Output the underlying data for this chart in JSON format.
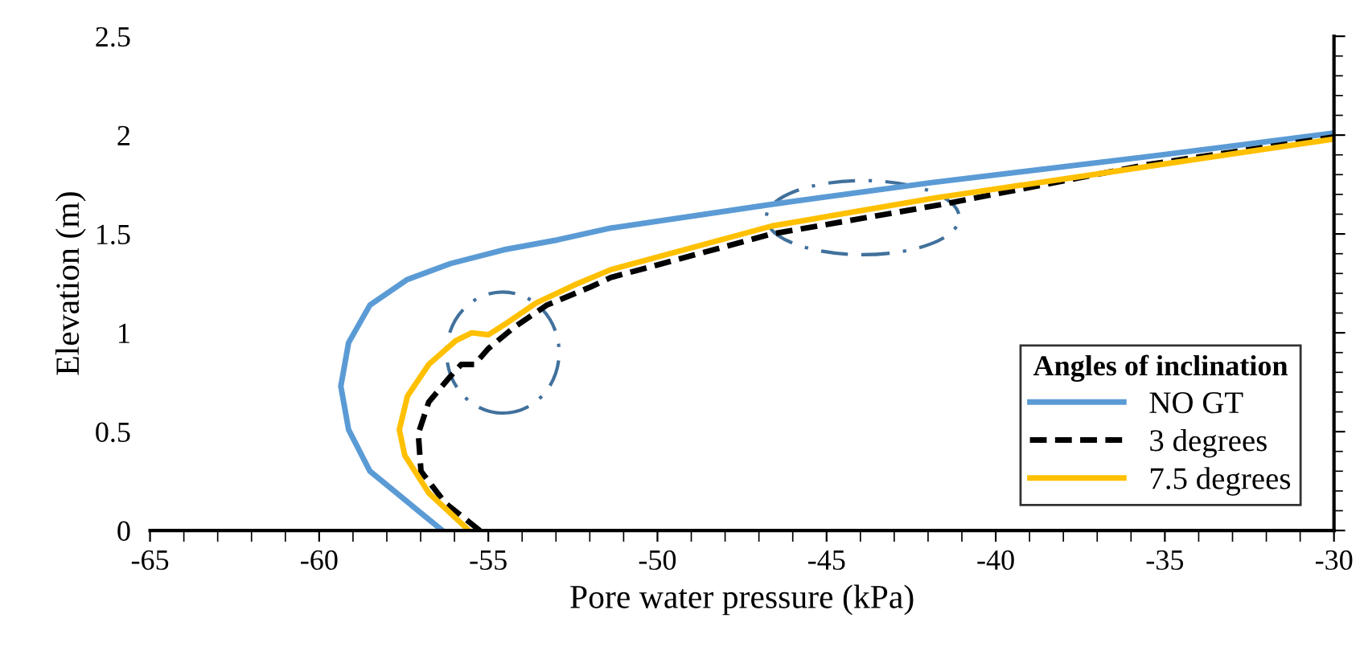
{
  "chart_data": {
    "type": "line",
    "xlabel": "Pore water pressure (kPa)",
    "ylabel": "Elevation (m)",
    "legend_title": "Angles of inclination",
    "legend": "bottom right",
    "grid": false,
    "marker": "none",
    "xlim": [
      -65,
      -30
    ],
    "xticks": [
      -65,
      -60,
      -55,
      -50,
      -45,
      -40,
      -35,
      -30
    ],
    "ylim": [
      0,
      2.5
    ],
    "yticks": [
      0,
      0.5,
      1,
      1.5,
      2,
      2.5
    ],
    "series": [
      {
        "name": "NO GT",
        "color": "#5b9bd5",
        "line_style": "solid",
        "x": [
          -56.36,
          -58.5,
          -59.13,
          -59.36,
          -59.13,
          -58.5,
          -57.39,
          -56.12,
          -54.54,
          -52.95,
          -51.37,
          -46.62,
          -41.88,
          -35.56,
          -30.0
        ],
        "values": [
          0,
          0.3,
          0.51,
          0.73,
          0.95,
          1.14,
          1.27,
          1.35,
          1.42,
          1.47,
          1.53,
          1.65,
          1.76,
          1.89,
          2.01
        ]
      },
      {
        "name": "3 degrees",
        "color": "#000000",
        "line_style": "dashed",
        "x": [
          -55.25,
          -56.28,
          -56.99,
          -57.07,
          -56.76,
          -56.12,
          -55.8,
          -55.41,
          -55.0,
          -54.22,
          -53.27,
          -52.0,
          -51.37,
          -46.62,
          -44.25,
          -41.56,
          -35.56,
          -30.0
        ],
        "values": [
          0,
          0.14,
          0.3,
          0.49,
          0.65,
          0.78,
          0.84,
          0.84,
          0.92,
          1.03,
          1.14,
          1.23,
          1.28,
          1.5,
          1.57,
          1.65,
          1.85,
          1.99
        ]
      },
      {
        "name": "7.5 degrees",
        "color": "#ffc000",
        "line_style": "solid",
        "x": [
          -55.57,
          -56.76,
          -57.47,
          -57.63,
          -57.39,
          -56.76,
          -55.96,
          -55.49,
          -55.0,
          -54.54,
          -53.59,
          -52.48,
          -51.37,
          -46.62,
          -41.88,
          -35.56,
          -30.0
        ],
        "values": [
          0,
          0.19,
          0.38,
          0.51,
          0.68,
          0.84,
          0.96,
          1.0,
          0.99,
          1.04,
          1.15,
          1.24,
          1.32,
          1.54,
          1.68,
          1.84,
          1.98
        ]
      }
    ]
  }
}
